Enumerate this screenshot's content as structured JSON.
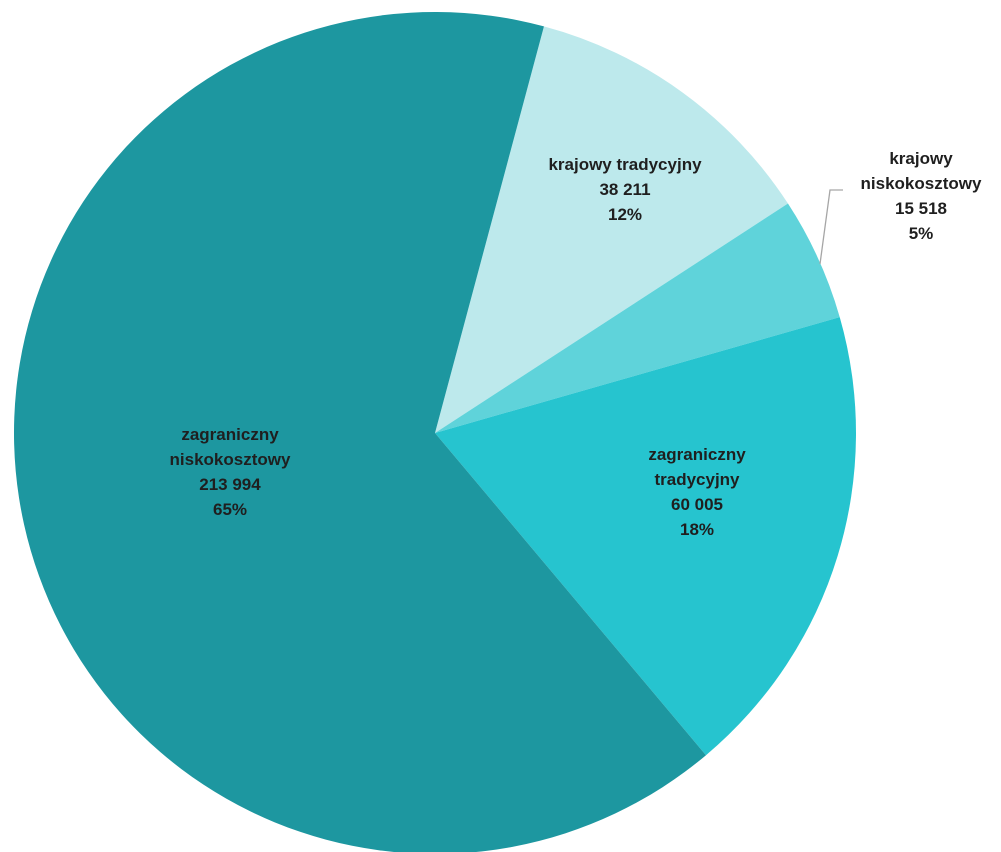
{
  "chart_data": {
    "type": "pie",
    "title": "",
    "start_angle_deg": 15,
    "direction": "clockwise",
    "legend": "none",
    "slices": [
      {
        "name_lines": [
          "krajowy tradycyjny"
        ],
        "value": 38211,
        "value_label": "38 211",
        "percent": 12,
        "percent_label": "12%",
        "color": "#bde9ec"
      },
      {
        "name_lines": [
          "krajowy",
          "niskokosztowy"
        ],
        "value": 15518,
        "value_label": "15 518",
        "percent": 5,
        "percent_label": "5%",
        "color": "#5fd3da"
      },
      {
        "name_lines": [
          "zagraniczny",
          "tradycyjny"
        ],
        "value": 60005,
        "value_label": "60 005",
        "percent": 18,
        "percent_label": "18%",
        "color": "#26c4cf"
      },
      {
        "name_lines": [
          "zagraniczny",
          "niskokosztowy"
        ],
        "value": 213994,
        "value_label": "213 994",
        "percent": 65,
        "percent_label": "65%",
        "color": "#1d97a0"
      }
    ]
  }
}
